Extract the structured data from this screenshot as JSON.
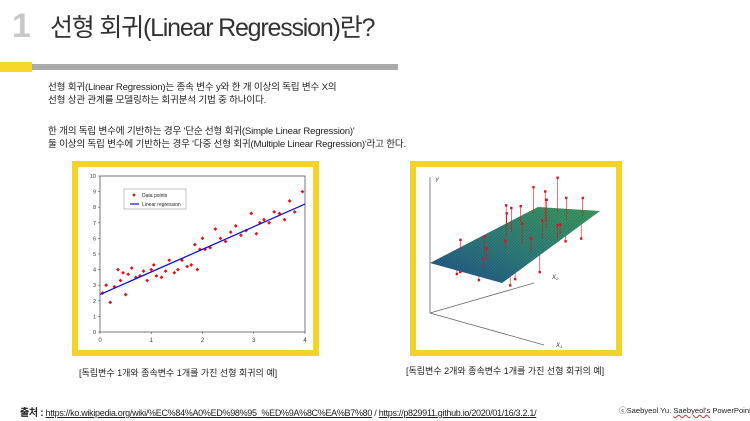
{
  "slide": {
    "number": "1",
    "title": "선형 회귀(Linear Regression)란?"
  },
  "body": {
    "line1": "선형 회귀(Linear Regression)는 종속 변수 y와 한 개 이상의 독립 변수 X의",
    "line2": "선형 상관 관계를 모델링하는 회귀분석 기법 중 하나이다.",
    "line3": "한 개의 독립 변수에 기반하는 경우 '단순 선형 회귀(Simple Linear Regression)'",
    "line4": "둘 이상의 독립 변수에 기반하는 경우 '다중 선형 회귀(Multiple Linear Regression)'라고 한다."
  },
  "figures": {
    "left_caption": "[독립변수 1개와 종속변수 1개를 가진 선형 회귀의 예]",
    "right_caption": "[독립변수 2개와 종속변수 1개를 가진 선형 회귀의 예]"
  },
  "footer": {
    "source_label": "출처 :",
    "source_url1": "https://ko.wikipedia.org/wiki/%EC%84%A0%ED%98%95_%ED%9A%8C%EA%B7%80",
    "separator": " / ",
    "source_url2": "https://p829911.github.io/2020/01/16/3.2.1/",
    "copyright_prefix": "ⓒSaebyeol Yu. ",
    "copyright_name": "Saebyeol's",
    "copyright_suffix": " PowerPoint"
  },
  "chart_data": [
    {
      "type": "scatter",
      "title": "",
      "xlabel": "",
      "ylabel": "",
      "xlim": [
        0,
        4
      ],
      "ylim": [
        0,
        10
      ],
      "xticks": [
        "0",
        "1",
        "2",
        "3",
        "4"
      ],
      "yticks": [
        "0",
        "1",
        "2",
        "3",
        "4",
        "5",
        "6",
        "7",
        "8",
        "9",
        "10"
      ],
      "legend": {
        "position": "top-left",
        "entries": [
          "Data points",
          "Linear regression"
        ]
      },
      "series": [
        {
          "name": "Data points",
          "color": "#e0121a",
          "marker": "diamond",
          "x": [
            0.05,
            0.12,
            0.2,
            0.28,
            0.35,
            0.4,
            0.45,
            0.5,
            0.55,
            0.62,
            0.7,
            0.78,
            0.85,
            0.92,
            1.0,
            1.05,
            1.1,
            1.2,
            1.28,
            1.35,
            1.45,
            1.52,
            1.6,
            1.7,
            1.78,
            1.85,
            1.9,
            1.95,
            2.0,
            2.05,
            2.15,
            2.25,
            2.35,
            2.45,
            2.55,
            2.65,
            2.75,
            2.85,
            2.95,
            3.05,
            3.12,
            3.2,
            3.3,
            3.4,
            3.5,
            3.6,
            3.7,
            3.8,
            3.95
          ],
          "y": [
            2.5,
            3.0,
            1.9,
            2.9,
            4.0,
            3.3,
            3.8,
            2.4,
            3.7,
            4.1,
            3.5,
            3.6,
            3.9,
            3.3,
            4.0,
            4.3,
            3.6,
            3.5,
            3.9,
            4.6,
            3.8,
            4.0,
            4.6,
            4.2,
            4.3,
            5.6,
            4.0,
            5.3,
            6.0,
            5.3,
            5.4,
            6.6,
            6.0,
            5.8,
            6.4,
            6.8,
            6.2,
            6.5,
            7.6,
            6.3,
            7.0,
            7.2,
            7.0,
            7.7,
            7.6,
            7.2,
            8.4,
            7.7,
            9.0
          ]
        },
        {
          "name": "Linear regression",
          "color": "#1111cc",
          "type": "line",
          "x": [
            0,
            4
          ],
          "y": [
            2.4,
            8.2
          ]
        }
      ]
    },
    {
      "type": "scatter",
      "title": "",
      "xlabel": "",
      "ylabel": "",
      "axis_labels": [
        "Y",
        "X2",
        "X1"
      ],
      "plane_color": "#2e6e76",
      "point_color": "#e0121a",
      "points_visible": 40
    }
  ]
}
